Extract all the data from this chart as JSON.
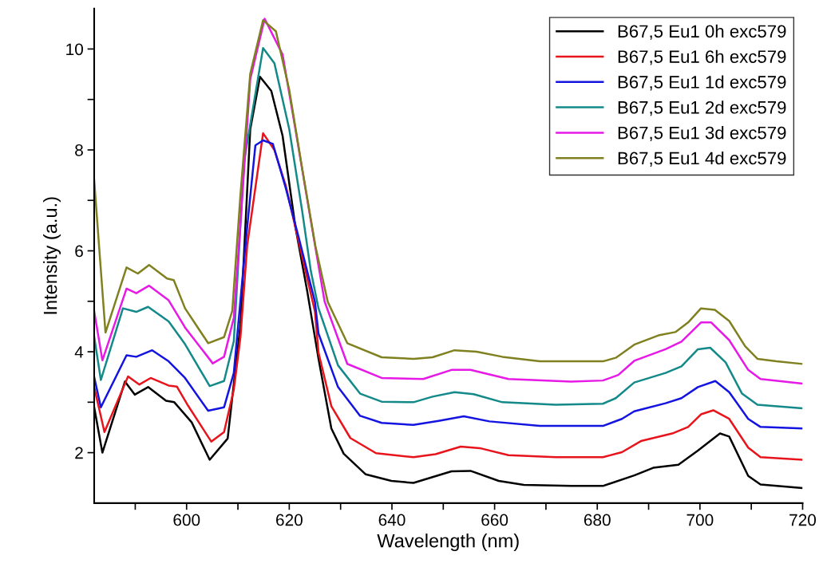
{
  "chart_data": {
    "type": "line",
    "xlabel": "Wavelength (nm)",
    "ylabel": "Intensity (a.u.)",
    "xlim": [
      582,
      720
    ],
    "ylim": [
      1,
      10.8
    ],
    "xticks": [
      {
        "value": 590,
        "label": null
      },
      600,
      {
        "value": 610,
        "label": null
      },
      620,
      {
        "value": 630,
        "label": null
      },
      640,
      {
        "value": 650,
        "label": null
      },
      660,
      {
        "value": 670,
        "label": null
      },
      680,
      {
        "value": 690,
        "label": null
      },
      700,
      {
        "value": 710,
        "label": null
      },
      720
    ],
    "yticks": [
      2,
      {
        "value": 3,
        "label": null
      },
      4,
      {
        "value": 5,
        "label": null
      },
      6,
      {
        "value": 7,
        "label": null
      },
      8,
      {
        "value": 9,
        "label": null
      },
      10
    ],
    "grid": false,
    "legend": "top right",
    "marker": "none",
    "line_style": "solid",
    "series": [
      {
        "name": "B67,5 Eu1 0h exc579",
        "color": "#000000",
        "x": [
          582,
          583.6,
          588.0,
          589.9,
          592.5,
          596.0,
          597.6,
          601,
          604.5,
          608.0,
          610.5,
          612.4,
          614.3,
          616.5,
          618.7,
          621.2,
          623.5,
          625.7,
          628.2,
          630.6,
          634.9,
          639.9,
          644.2,
          651.6,
          655.3,
          660.8,
          665.7,
          674.9,
          681.1,
          687.2,
          690.9,
          695.8,
          699.6,
          703.9,
          705.7,
          709.4,
          711.8,
          719.8
        ],
        "values": [
          2.9,
          2.0,
          3.41,
          3.15,
          3.3,
          3.03,
          3.0,
          2.6,
          1.86,
          2.28,
          4.54,
          8.41,
          9.45,
          9.17,
          8.28,
          6.47,
          5.2,
          3.86,
          2.48,
          1.98,
          1.57,
          1.44,
          1.4,
          1.63,
          1.64,
          1.44,
          1.36,
          1.34,
          1.34,
          1.55,
          1.7,
          1.76,
          2.04,
          2.38,
          2.32,
          1.54,
          1.37,
          1.3
        ]
      },
      {
        "name": "B67,5 Eu1 6h exc579",
        "color": "#e8141c",
        "x": [
          582,
          584.0,
          588.6,
          590.8,
          593.0,
          596.5,
          598.1,
          600.3,
          604.8,
          607.3,
          609.2,
          610.5,
          611.8,
          614.9,
          617.1,
          619.3,
          621.8,
          625.0,
          625.7,
          628.2,
          631.9,
          636.9,
          644.2,
          648.5,
          653.4,
          657.1,
          662.7,
          671.9,
          681.1,
          684.8,
          688.5,
          694.6,
          697.7,
          700.2,
          702.6,
          705.7,
          709.4,
          711.8,
          719.8
        ],
        "values": [
          3.3,
          2.41,
          3.51,
          3.35,
          3.48,
          3.33,
          3.31,
          2.93,
          2.22,
          2.41,
          3.25,
          4.3,
          6.1,
          8.33,
          8.0,
          7.3,
          6.2,
          4.8,
          3.98,
          2.92,
          2.29,
          1.99,
          1.91,
          1.97,
          2.12,
          2.09,
          1.95,
          1.91,
          1.91,
          2.01,
          2.23,
          2.38,
          2.51,
          2.76,
          2.84,
          2.67,
          2.1,
          1.91,
          1.86
        ]
      },
      {
        "name": "B67,5 Eu1 1d exc579",
        "color": "#1414e0",
        "x": [
          582,
          583.3,
          588.3,
          590.2,
          593.3,
          596.5,
          599.7,
          604.2,
          607.3,
          609.2,
          611.8,
          613.4,
          614.9,
          616.8,
          619.3,
          621.8,
          625.0,
          625.7,
          629.5,
          633.8,
          638.0,
          644.2,
          649.1,
          654.0,
          659.0,
          668.8,
          681.1,
          684.8,
          687.2,
          693.3,
          696.4,
          699.6,
          703.0,
          705.7,
          709.4,
          711.8,
          719.8
        ],
        "values": [
          3.5,
          2.9,
          3.93,
          3.9,
          4.03,
          3.81,
          3.48,
          2.83,
          2.9,
          3.58,
          6.47,
          8.09,
          8.19,
          8.12,
          7.25,
          6.28,
          4.99,
          4.36,
          3.3,
          2.73,
          2.59,
          2.55,
          2.63,
          2.72,
          2.62,
          2.53,
          2.53,
          2.67,
          2.82,
          2.98,
          3.08,
          3.3,
          3.42,
          3.2,
          2.67,
          2.51,
          2.48
        ]
      },
      {
        "name": "B67,5 Eu1 2d exc579",
        "color": "#14898a",
        "x": [
          582,
          583.3,
          587.6,
          590.2,
          592.5,
          596.5,
          599.7,
          604.5,
          607.3,
          609.2,
          611.2,
          614.9,
          617.1,
          620.0,
          622.5,
          624.2,
          625.7,
          629.5,
          633.8,
          638.0,
          644.2,
          647.9,
          652.2,
          655.9,
          661.5,
          671.9,
          681.1,
          683.6,
          687.2,
          693.3,
          696.4,
          699.6,
          702.0,
          705.0,
          708.2,
          711.2,
          719.8
        ],
        "values": [
          4.3,
          3.44,
          4.86,
          4.79,
          4.89,
          4.6,
          4.15,
          3.32,
          3.42,
          4.21,
          7.77,
          10.02,
          9.72,
          8.41,
          6.8,
          5.6,
          4.86,
          3.73,
          3.17,
          3.01,
          3.0,
          3.11,
          3.2,
          3.16,
          3.0,
          2.95,
          2.97,
          3.08,
          3.39,
          3.58,
          3.71,
          4.05,
          4.08,
          3.79,
          3.17,
          2.95,
          2.88
        ]
      },
      {
        "name": "B67,5 Eu1 3d exc579",
        "color": "#e619e6",
        "x": [
          582,
          583.6,
          588.3,
          590.2,
          592.7,
          596.5,
          599.7,
          605.1,
          607.3,
          609.2,
          610.8,
          612.4,
          615.2,
          618.7,
          621.2,
          624.4,
          626.9,
          631.3,
          638.0,
          646.1,
          651.6,
          655.3,
          662.7,
          674.9,
          681.1,
          684.1,
          687.2,
          693.3,
          696.4,
          700.2,
          702.2,
          705.7,
          709.4,
          711.8,
          719.8
        ],
        "values": [
          4.8,
          3.83,
          5.25,
          5.16,
          5.31,
          5.02,
          4.48,
          3.77,
          3.9,
          4.67,
          7.0,
          9.4,
          10.6,
          9.89,
          8.41,
          6.48,
          4.99,
          3.76,
          3.48,
          3.46,
          3.64,
          3.64,
          3.46,
          3.41,
          3.43,
          3.54,
          3.82,
          4.05,
          4.2,
          4.58,
          4.58,
          4.23,
          3.64,
          3.46,
          3.37
        ]
      },
      {
        "name": "B67,5 Eu1 4d exc579",
        "color": "#808020",
        "x": [
          582,
          584.2,
          588.3,
          590.5,
          592.7,
          596.2,
          597.5,
          599.7,
          604.2,
          607.3,
          608.9,
          610.5,
          612.4,
          614.9,
          617.4,
          620.0,
          622.5,
          625.1,
          627.5,
          631.3,
          638.0,
          644.2,
          647.9,
          652.2,
          656.5,
          661.5,
          668.8,
          681.1,
          683.6,
          687.2,
          692.1,
          695.2,
          697.7,
          700.2,
          702.9,
          705.7,
          708.8,
          711.2,
          714.9,
          719.8
        ],
        "values": [
          7.4,
          4.38,
          5.67,
          5.55,
          5.72,
          5.45,
          5.42,
          4.86,
          4.17,
          4.29,
          4.81,
          7.12,
          9.51,
          10.57,
          10.35,
          9.19,
          7.64,
          6.09,
          4.99,
          4.17,
          3.89,
          3.86,
          3.89,
          4.03,
          4.0,
          3.9,
          3.81,
          3.81,
          3.88,
          4.14,
          4.33,
          4.39,
          4.58,
          4.86,
          4.83,
          4.61,
          4.11,
          3.86,
          3.81,
          3.76
        ]
      }
    ]
  }
}
